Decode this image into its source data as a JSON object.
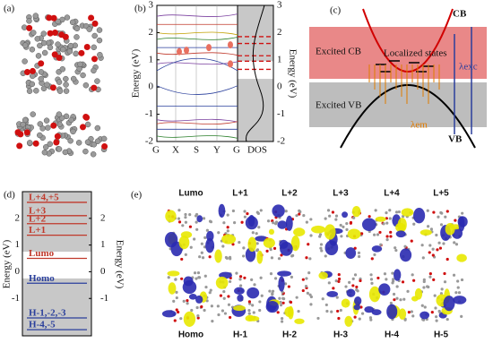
{
  "panels": {
    "a": {
      "label": "(a)"
    },
    "b": {
      "label": "(b)",
      "y_label": "Energy (eV)",
      "ylim": [
        -2,
        3
      ],
      "yticks": [
        -2,
        -1,
        0,
        1,
        2,
        3
      ],
      "x_labels": [
        "G",
        "X",
        "S",
        "Y",
        "G",
        "DOS"
      ]
    },
    "c": {
      "label": "(c)",
      "cb": "CB",
      "vb": "VB",
      "excited_cb": "Excited CB",
      "excited_vb": "Excited VB",
      "localized": "Localized states",
      "exc": "λexc",
      "em": "λem"
    },
    "d": {
      "label": "(d)",
      "y_label": "Energy (eV)",
      "ylim": [
        -2.4,
        3
      ],
      "yticks": [
        -1,
        0,
        1,
        2
      ],
      "levels": [
        {
          "label": "L+4,+5",
          "energy": 2.6,
          "color": "#c0392b"
        },
        {
          "label": "L+3",
          "energy": 2.1,
          "color": "#c0392b"
        },
        {
          "label": "L+2",
          "energy": 1.8,
          "color": "#c0392b"
        },
        {
          "label": "L+1",
          "energy": 1.37,
          "color": "#c0392b"
        },
        {
          "label": "Lumo",
          "energy": 0.5,
          "color": "#c0392b"
        },
        {
          "label": "Homo",
          "energy": -0.43,
          "color": "#2a3f9c"
        },
        {
          "label": "H-1,-2,-3",
          "energy": -1.73,
          "color": "#2a3f9c"
        },
        {
          "label": "H-4,-5",
          "energy": -2.17,
          "color": "#2a3f9c"
        }
      ]
    },
    "e": {
      "label": "(e)",
      "top": [
        "Lumo",
        "L+1",
        "L+2",
        "L+3",
        "L+4",
        "L+5"
      ],
      "bottom": [
        "Homo",
        "H-1",
        "H-2",
        "H-3",
        "H-4",
        "H-5"
      ]
    }
  }
}
